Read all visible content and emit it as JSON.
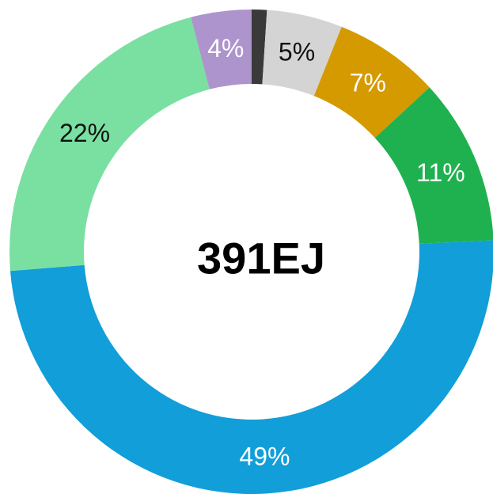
{
  "chart_data": {
    "type": "donut",
    "center_label": "391EJ",
    "values": [
      1,
      5,
      7,
      11,
      49,
      22,
      4
    ],
    "value_labels": [
      null,
      "5%",
      "7%",
      "11%",
      "49%",
      "22%",
      "4%"
    ],
    "colors": [
      "#3a3a3a",
      "#d4d4d4",
      "#d49a00",
      "#1fb14f",
      "#119ed9",
      "#7ae0a2",
      "#ad94cd"
    ],
    "label_colors": [
      "#ffffff",
      "#111111",
      "#ffffff",
      "#ffffff",
      "#ffffff",
      "#111111",
      "#ffffff"
    ]
  }
}
